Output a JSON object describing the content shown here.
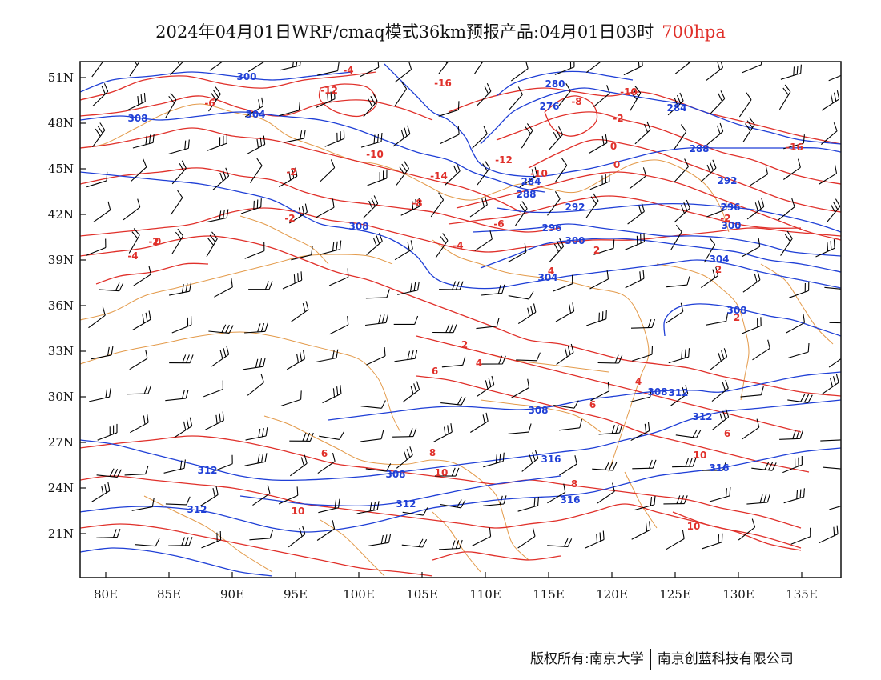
{
  "title": {
    "main": "2024年04月01日WRF/cmaq模式36km预报产品:04月01日03时",
    "level": "700hpa"
  },
  "axes": {
    "lat_labels": [
      "51N",
      "48N",
      "45N",
      "42N",
      "39N",
      "36N",
      "33N",
      "30N",
      "27N",
      "24N",
      "21N"
    ],
    "lon_labels": [
      "80E",
      "85E",
      "90E",
      "95E",
      "100E",
      "105E",
      "110E",
      "115E",
      "120E",
      "125E",
      "130E",
      "135E"
    ]
  },
  "legend_colors": {
    "temperature_isotherm": "#e0302a",
    "geopotential_height": "#1f3fd6",
    "borders": "#e39a4a",
    "wind_barbs": "#000000"
  },
  "temperature_labels": [
    "-4",
    "-16",
    "-8",
    "-12",
    "-6",
    "-10",
    "-2",
    "-14",
    "-10",
    "-12",
    "-8",
    "-6",
    "-4",
    "-2",
    "0",
    "-2",
    "-16",
    "-10",
    "-4",
    "-2",
    "0",
    "-2",
    "2",
    "0",
    "2",
    "4",
    "2",
    "6",
    "2",
    "4",
    "6",
    "6",
    "8",
    "4",
    "6",
    "10",
    "10",
    "8",
    "10",
    "10"
  ],
  "height_labels": [
    "300",
    "308",
    "304",
    "280",
    "276",
    "284",
    "288",
    "284",
    "292",
    "288",
    "308",
    "296",
    "292",
    "296",
    "300",
    "300",
    "304",
    "304",
    "308",
    "312",
    "308",
    "308",
    "312",
    "312",
    "316",
    "316",
    "308",
    "312",
    "316",
    "312"
  ],
  "footer": {
    "left": "版权所有:南京大学",
    "right": "南京创蓝科技有限公司"
  }
}
